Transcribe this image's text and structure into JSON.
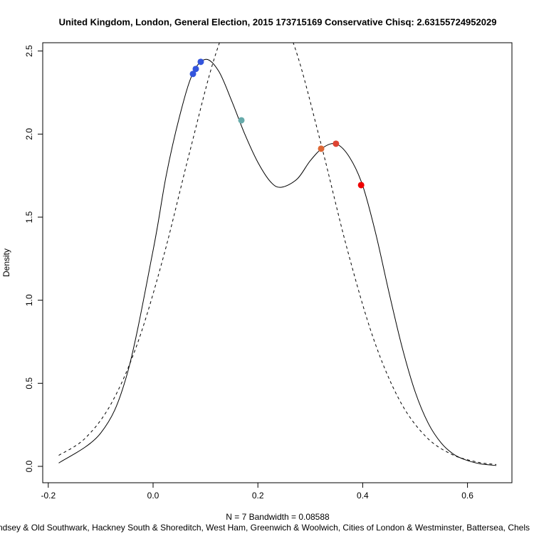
{
  "chart_data": {
    "type": "line",
    "title": "United Kingdom, London, General Election, 2015 173715169 Conservative Chisq: 2.63155724952029",
    "xlabel": "N = 7   Bandwidth = 0.08588",
    "ylabel": "Density",
    "subtitle": "ndsey & Old Southwark, Hackney South & Shoreditch, West Ham, Greenwich & Woolwich, Cities of London & Westminster, Battersea, Chels",
    "xlim": [
      -0.2106,
      0.6848
    ],
    "ylim": [
      -0.0986,
      2.55
    ],
    "xticks": [
      -0.2,
      {
        "value": 0,
        "label": "0.0"
      },
      0.2,
      0.4,
      0.6
    ],
    "yticks": [
      {
        "value": 0,
        "label": "0.0"
      },
      0.5,
      {
        "value": 1,
        "label": "1.0"
      },
      1.5,
      {
        "value": 2,
        "label": "2.0"
      },
      2.5
    ],
    "series": [
      {
        "color": "#000000",
        "dash": false,
        "x": [
          -0.18,
          -0.1,
          -0.05,
          0.0,
          0.025,
          0.05,
          0.075,
          0.1,
          0.125,
          0.15,
          0.175,
          0.2,
          0.225,
          0.245,
          0.275,
          0.3,
          0.325,
          0.35,
          0.375,
          0.4,
          0.425,
          0.45,
          0.475,
          0.5,
          0.525,
          0.55,
          0.575,
          0.6,
          0.625,
          0.655
        ],
        "values": [
          0.02,
          0.2,
          0.55,
          1.3,
          1.75,
          2.1,
          2.36,
          2.45,
          2.38,
          2.2,
          2.0,
          1.83,
          1.71,
          1.68,
          1.73,
          1.84,
          1.92,
          1.94,
          1.86,
          1.69,
          1.4,
          1.05,
          0.72,
          0.45,
          0.26,
          0.14,
          0.07,
          0.035,
          0.015,
          0.005
        ]
      },
      {
        "color": "#000000",
        "dash": true,
        "x": [
          -0.18,
          -0.13,
          -0.08,
          -0.03,
          0.02,
          0.07,
          0.12,
          0.17,
          0.22,
          0.27,
          0.32,
          0.37,
          0.42,
          0.47,
          0.52,
          0.57,
          0.62,
          0.655
        ],
        "values": [
          0.066,
          0.168,
          0.377,
          0.738,
          1.264,
          1.894,
          2.487,
          2.856,
          2.871,
          2.527,
          1.947,
          1.313,
          0.774,
          0.4,
          0.181,
          0.072,
          0.025,
          0.011
        ]
      }
    ],
    "points": {
      "x": [
        0.0761,
        0.0815,
        0.091,
        0.1685,
        0.3207,
        0.349,
        0.397
      ],
      "values": [
        2.362,
        2.392,
        2.435,
        2.083,
        1.912,
        1.942,
        1.693
      ],
      "colors": [
        "#3355dd",
        "#3355dd",
        "#3355dd",
        "#66aaaa",
        "#dd6633",
        "#dd4433",
        "#ee0000"
      ]
    }
  }
}
